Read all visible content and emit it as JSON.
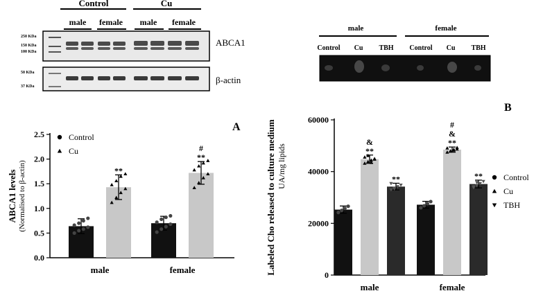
{
  "blots": {
    "top_left": {
      "groups": [
        "Control",
        "Cu"
      ],
      "lanes": [
        "male",
        "female",
        "male",
        "female"
      ],
      "marker_labels_abca1": [
        "250 KDa",
        "150 KDa",
        "100 KDa"
      ],
      "marker_labels_actin": [
        "50 KDa",
        "37 KDa"
      ],
      "band_labels": [
        "ABCA1",
        "β-actin"
      ]
    },
    "top_right": {
      "groups": [
        "male",
        "female"
      ],
      "lanes": [
        "Control",
        "Cu",
        "TBH",
        "Control",
        "Cu",
        "TBH"
      ]
    }
  },
  "chart_data": [
    {
      "panel": "A",
      "type": "bar",
      "ylabel": "ABCA1 levels",
      "ylabel_sub": "(Normalised to β-actin)",
      "categories": [
        "male",
        "female"
      ],
      "ylim": [
        0,
        2.5
      ],
      "yticks": [
        "0.0",
        "0.5",
        "1.0",
        "1.5",
        "2.0",
        "2.5"
      ],
      "legend": {
        "placement": "top-left",
        "entries": [
          "Control",
          "Cu"
        ]
      },
      "series": [
        {
          "name": "Control",
          "color": "#111111",
          "marker": "circle",
          "values": [
            0.64,
            0.7
          ],
          "errors": [
            0.15,
            0.14
          ],
          "points": [
            [
              0.5,
              0.55,
              0.58,
              0.62,
              0.66,
              0.7,
              0.75,
              0.8
            ],
            [
              0.52,
              0.58,
              0.63,
              0.68,
              0.72,
              0.78,
              0.82,
              0.85
            ]
          ]
        },
        {
          "name": "Cu",
          "color": "#c8c8c8",
          "marker": "triangle",
          "values": [
            1.43,
            1.72
          ],
          "errors": [
            0.25,
            0.23
          ],
          "points": [
            [
              1.12,
              1.22,
              1.32,
              1.4,
              1.48,
              1.56,
              1.65,
              1.7
            ],
            [
              1.42,
              1.52,
              1.62,
              1.7,
              1.78,
              1.86,
              1.92,
              1.97
            ]
          ]
        }
      ],
      "annotations": [
        {
          "category": "male",
          "series": "Cu",
          "text": [
            "**"
          ]
        },
        {
          "category": "female",
          "series": "Cu",
          "text": [
            "#",
            "**"
          ]
        }
      ]
    },
    {
      "panel": "B",
      "type": "bar",
      "ylabel": "Labeled Cho released to culture medium",
      "ylabel_sub": "UA/mg lipids",
      "categories": [
        "male",
        "female"
      ],
      "ylim": [
        0,
        60000
      ],
      "yticks": [
        "0",
        "20000",
        "40000",
        "60000"
      ],
      "legend": {
        "placement": "right",
        "entries": [
          "Control",
          "Cu",
          "TBH"
        ]
      },
      "series": [
        {
          "name": "Control",
          "color": "#111111",
          "marker": "circle",
          "values": [
            25300,
            27200
          ],
          "errors": [
            1400,
            1300
          ],
          "points": [
            [
              24200,
              25000,
              25800,
              26600
            ],
            [
              26000,
              26800,
              27600,
              28400
            ]
          ]
        },
        {
          "name": "Cu",
          "color": "#c8c8c8",
          "marker": "triangle",
          "values": [
            44800,
            48500
          ],
          "errors": [
            1600,
            1000
          ],
          "points": [
            [
              43200,
              43800,
              44400,
              45000,
              45600,
              46200,
              43500,
              44800
            ],
            [
              47500,
              47900,
              48300,
              48700,
              49100,
              48000,
              48600,
              49300
            ]
          ]
        },
        {
          "name": "TBH",
          "color": "#2a2a2a",
          "marker": "triangle-down",
          "values": [
            34200,
            35200
          ],
          "errors": [
            1300,
            1500
          ],
          "points": [
            [
              33000,
              33600,
              34200,
              34800,
              35400,
              33300
            ],
            [
              33800,
              34600,
              35400,
              36200,
              34200,
              35800
            ]
          ]
        }
      ],
      "annotations": [
        {
          "category": "male",
          "series": "Cu",
          "text": [
            "&",
            "**"
          ]
        },
        {
          "category": "male",
          "series": "TBH",
          "text": [
            "**"
          ]
        },
        {
          "category": "female",
          "series": "Cu",
          "text": [
            "#",
            "&",
            "**"
          ]
        },
        {
          "category": "female",
          "series": "TBH",
          "text": [
            "**"
          ]
        }
      ]
    }
  ]
}
